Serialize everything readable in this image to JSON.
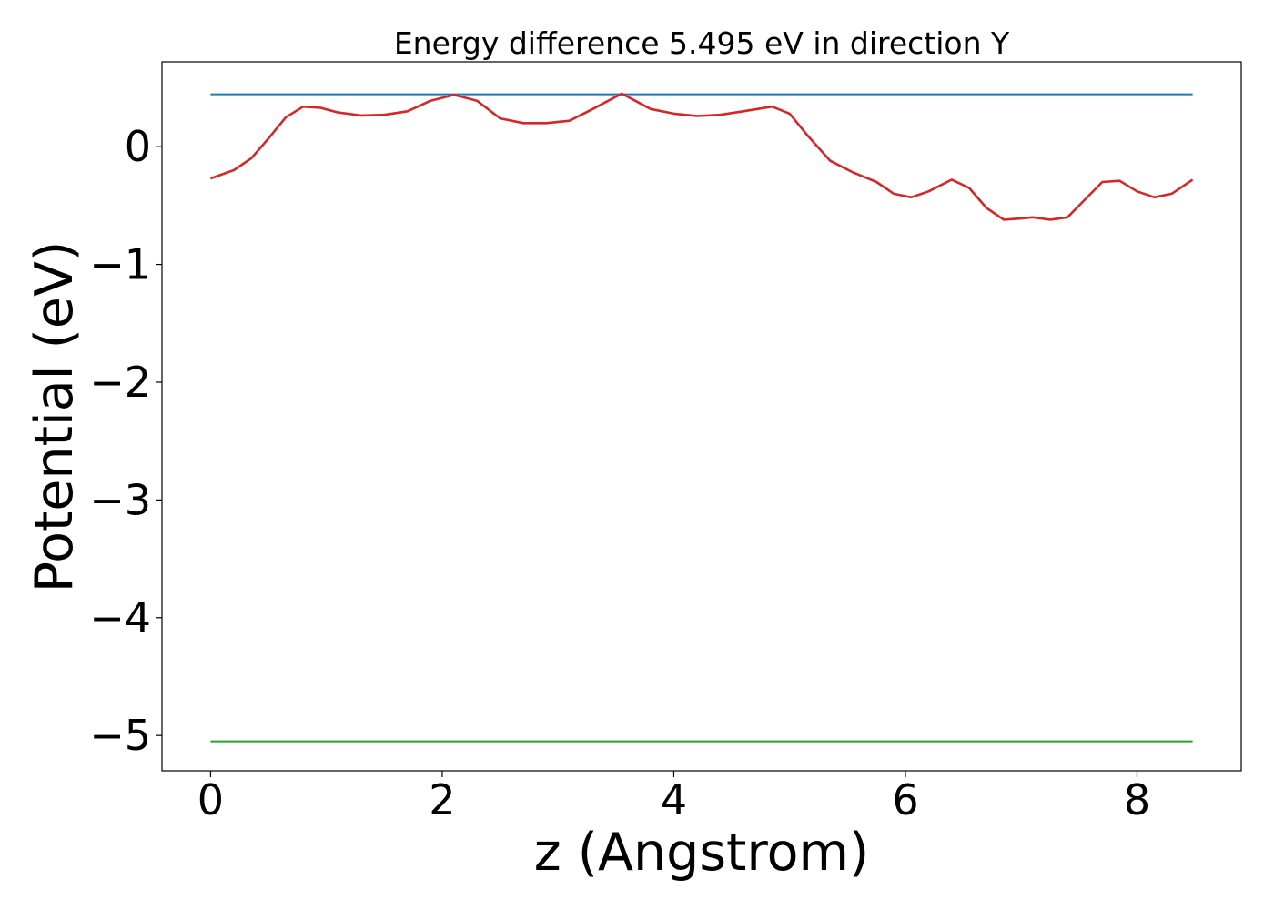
{
  "chart_data": {
    "type": "line",
    "title": "Energy difference 5.495 eV in direction Y",
    "xlabel": "z (Angstrom)",
    "ylabel": "Potential (eV)",
    "xlim": [
      -0.42,
      8.9
    ],
    "ylim": [
      -5.3,
      0.72
    ],
    "xticks": [
      0,
      2,
      4,
      6,
      8
    ],
    "xtick_labels": [
      "0",
      "2",
      "4",
      "6",
      "8"
    ],
    "yticks": [
      0,
      -1,
      -2,
      -3,
      -4,
      -5
    ],
    "ytick_labels": [
      "0",
      "−1",
      "−2",
      "−3",
      "−4",
      "−5"
    ],
    "grid": false,
    "legend": "none",
    "series": [
      {
        "color": "#1f77b4",
        "x": [
          0,
          8.48
        ],
        "y": [
          0.445,
          0.445
        ]
      },
      {
        "color": "#d62728",
        "x": [
          0,
          0.2,
          0.35,
          0.5,
          0.65,
          0.8,
          0.95,
          1.1,
          1.3,
          1.5,
          1.7,
          1.9,
          2.1,
          2.3,
          2.5,
          2.7,
          2.9,
          3.1,
          3.3,
          3.55,
          3.8,
          4.0,
          4.2,
          4.4,
          4.6,
          4.85,
          5.0,
          5.15,
          5.35,
          5.55,
          5.75,
          5.9,
          6.05,
          6.2,
          6.4,
          6.55,
          6.7,
          6.85,
          7.0,
          7.1,
          7.25,
          7.4,
          7.55,
          7.7,
          7.85,
          8.0,
          8.15,
          8.3,
          8.48
        ],
        "y": [
          -0.27,
          -0.2,
          -0.1,
          0.07,
          0.25,
          0.34,
          0.33,
          0.29,
          0.265,
          0.27,
          0.3,
          0.39,
          0.44,
          0.39,
          0.24,
          0.2,
          0.2,
          0.22,
          0.32,
          0.45,
          0.32,
          0.28,
          0.26,
          0.27,
          0.3,
          0.34,
          0.28,
          0.1,
          -0.12,
          -0.22,
          -0.3,
          -0.4,
          -0.43,
          -0.38,
          -0.28,
          -0.35,
          -0.52,
          -0.62,
          -0.61,
          -0.6,
          -0.62,
          -0.6,
          -0.45,
          -0.3,
          -0.29,
          -0.38,
          -0.43,
          -0.4,
          -0.28
        ]
      },
      {
        "color": "#2ca02c",
        "x": [
          0,
          8.48
        ],
        "y": [
          -5.05,
          -5.05
        ]
      }
    ]
  }
}
